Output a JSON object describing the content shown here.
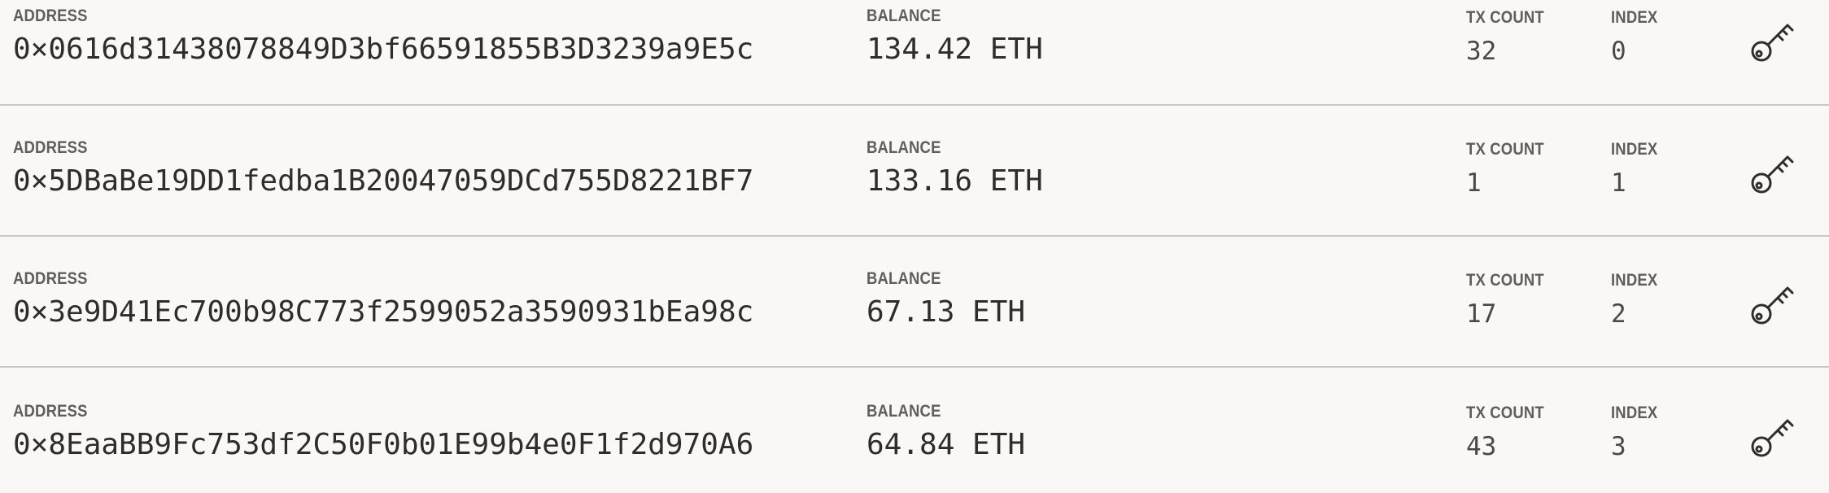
{
  "accounts": [
    {
      "address_label": "ADDRESS",
      "address": "0×0616d31438078849D3bf66591855B3D3239a9E5c",
      "balance_label": "BALANCE",
      "balance": "134.42 ETH",
      "tx_count_label": "TX COUNT",
      "tx_count": "32",
      "index_label": "INDEX",
      "index": "0",
      "icon": "key-icon"
    },
    {
      "address_label": "ADDRESS",
      "address": "0×5DBaBe19DD1fedba1B20047059DCd755D8221BF7",
      "balance_label": "BALANCE",
      "balance": "133.16 ETH",
      "tx_count_label": "TX COUNT",
      "tx_count": "1",
      "index_label": "INDEX",
      "index": "1",
      "icon": "key-icon"
    },
    {
      "address_label": "ADDRESS",
      "address": "0×3e9D41Ec700b98C773f2599052a3590931bEa98c",
      "balance_label": "BALANCE",
      "balance": "67.13 ETH",
      "tx_count_label": "TX COUNT",
      "tx_count": "17",
      "index_label": "INDEX",
      "index": "2",
      "icon": "key-icon"
    },
    {
      "address_label": "ADDRESS",
      "address": "0×8EaaBB9Fc753df2C50F0b01E99b4e0F1f2d970A6",
      "balance_label": "BALANCE",
      "balance": "64.84 ETH",
      "tx_count_label": "TX COUNT",
      "tx_count": "43",
      "index_label": "INDEX",
      "index": "3",
      "icon": "key-icon"
    }
  ],
  "colors": {
    "background": "#f9f8f6",
    "divider": "#c9c8c5",
    "label": "#5f5e5b",
    "value": "#2e2d2b"
  }
}
